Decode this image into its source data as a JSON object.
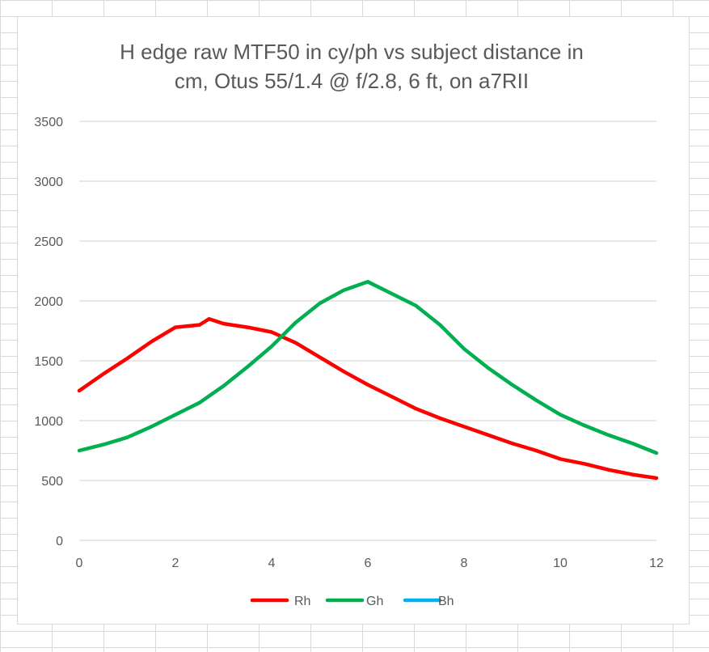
{
  "chart_data": {
    "type": "line",
    "title_lines": [
      "H edge raw MTF50 in cy/ph vs subject distance in",
      "cm, Otus 55/1.4 @ f/2.8, 6 ft, on a7RII"
    ],
    "xlim": [
      0,
      12
    ],
    "ylim": [
      0,
      3500
    ],
    "x_ticks": [
      0,
      2,
      4,
      6,
      8,
      10,
      12
    ],
    "y_ticks": [
      0,
      500,
      1000,
      1500,
      2000,
      2500,
      3000,
      3500
    ],
    "grid": true,
    "legend_position": "bottom",
    "series": [
      {
        "name": "Rh",
        "color": "#ff0000",
        "x": [
          0,
          0.5,
          1,
          1.5,
          2,
          2.5,
          2.7,
          3,
          3.5,
          4,
          4.5,
          5,
          5.5,
          6,
          6.5,
          7,
          7.5,
          8,
          8.5,
          9,
          9.5,
          10,
          10.5,
          11,
          11.5,
          12
        ],
        "y": [
          1250,
          1390,
          1520,
          1660,
          1780,
          1800,
          1850,
          1810,
          1780,
          1740,
          1650,
          1530,
          1410,
          1300,
          1200,
          1100,
          1020,
          950,
          880,
          810,
          750,
          680,
          640,
          590,
          550,
          520
        ]
      },
      {
        "name": "Gh",
        "color": "#00b050",
        "x": [
          0,
          0.5,
          1,
          1.5,
          2,
          2.5,
          3,
          3.5,
          4,
          4.5,
          5,
          5.5,
          6,
          6.5,
          7,
          7.5,
          8,
          8.5,
          9,
          9.5,
          10,
          10.5,
          11,
          11.5,
          12
        ],
        "y": [
          750,
          800,
          860,
          950,
          1050,
          1150,
          1290,
          1450,
          1620,
          1820,
          1980,
          2090,
          2160,
          2060,
          1960,
          1800,
          1600,
          1440,
          1300,
          1170,
          1050,
          960,
          880,
          810,
          730
        ]
      },
      {
        "name": "Bh",
        "color": "#00b0f0",
        "x": [],
        "y": []
      }
    ]
  }
}
